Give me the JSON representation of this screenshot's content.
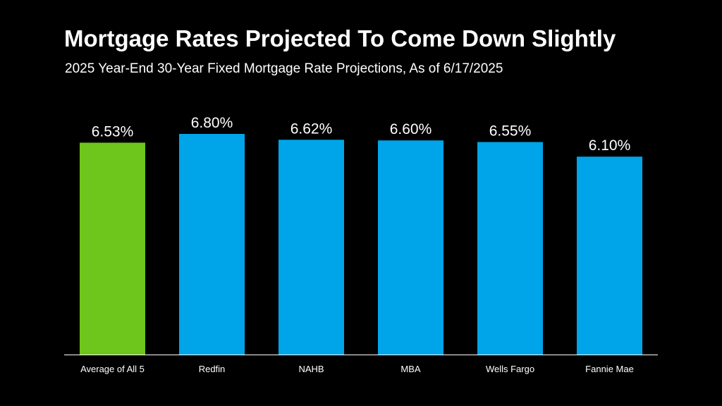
{
  "title": "Mortgage Rates Projected To Come Down Slightly",
  "subtitle": "2025 Year-End 30-Year Fixed Mortgage Rate Projections, As of 6/17/2025",
  "colors": {
    "background": "#000000",
    "highlight_bar": "#6ec51b",
    "bar": "#00a4e8",
    "text": "#ffffff",
    "axis": "#ffffff"
  },
  "chart_data": {
    "type": "bar",
    "categories": [
      "Average of All 5",
      "Redfin",
      "NAHB",
      "MBA",
      "Wells Fargo",
      "Fannie Mae"
    ],
    "values": [
      6.53,
      6.8,
      6.62,
      6.6,
      6.55,
      6.1
    ],
    "value_labels": [
      "6.53%",
      "6.80%",
      "6.62%",
      "6.60%",
      "6.55%",
      "6.10%"
    ],
    "highlight_index": 0,
    "ylim": [
      0,
      6.8
    ],
    "grid": false,
    "legend": "none"
  }
}
